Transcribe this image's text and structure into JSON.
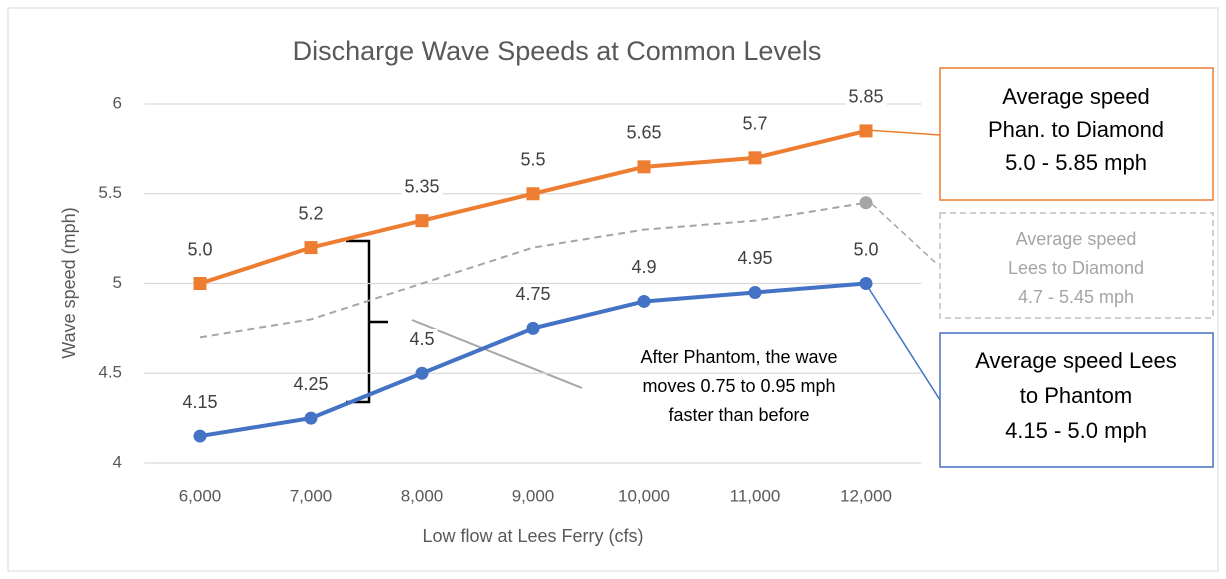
{
  "chart_data": {
    "type": "line",
    "title": "Discharge Wave Speeds at Common Levels",
    "x_label": "Low flow at Lees Ferry (cfs)",
    "y_label": "Wave speed (mph)",
    "categories": [
      "6,000",
      "7,000",
      "8,000",
      "9,000",
      "10,000",
      "11,000",
      "12,000"
    ],
    "series": [
      {
        "color": "#ed7d31",
        "marker": "square",
        "values": [
          5.0,
          5.2,
          5.35,
          5.5,
          5.65,
          5.7,
          5.85
        ],
        "value_labels": [
          "5.0",
          "5.2",
          "5.35",
          "5.5",
          "5.65",
          "5.7",
          "5.85"
        ]
      },
      {
        "color": "#a5a5a5",
        "dashed": true,
        "values": [
          4.7,
          4.8,
          5.0,
          5.2,
          5.3,
          5.35,
          5.45
        ]
      },
      {
        "color": "#4472c4",
        "marker": "circle",
        "values": [
          4.15,
          4.25,
          4.5,
          4.75,
          4.9,
          4.95,
          5.0
        ],
        "value_labels": [
          "4.15",
          "4.25",
          "4.5",
          "4.75",
          "4.9",
          "4.95",
          "5.0"
        ]
      }
    ],
    "ylim": [
      4,
      6
    ],
    "yticks": [
      4,
      4.5,
      5,
      5.5,
      6
    ],
    "grid": true,
    "annotations": [
      {
        "lines": [
          "Average speed",
          "Phan. to Diamond",
          "5.0 - 5.85 mph"
        ]
      },
      {
        "lines": [
          "Average speed",
          "Lees to Diamond",
          "4.7 - 5.45 mph"
        ]
      },
      {
        "lines": [
          "Average speed Lees",
          "to Phantom",
          "4.15 - 5.0 mph"
        ]
      },
      {
        "lines": [
          "After Phantom, the wave",
          "moves 0.75 to 0.95 mph",
          "faster than before"
        ]
      }
    ]
  }
}
